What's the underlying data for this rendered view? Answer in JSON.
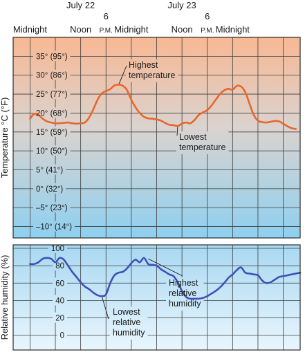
{
  "chart_data": [
    {
      "type": "line",
      "ylabel": "Temperature °C (°F)",
      "ylim": [
        -13,
        40
      ],
      "y_ticks": [
        {
          "value": 35,
          "label": "35° (95°)"
        },
        {
          "value": 30,
          "label": "30° (86°)"
        },
        {
          "value": 25,
          "label": "25° (77°)"
        },
        {
          "value": 20,
          "label": "20° (68°)"
        },
        {
          "value": 15,
          "label": "15° (59°)"
        },
        {
          "value": 10,
          "label": "10° (50°)"
        },
        {
          "value": 5,
          "label": "5° (41°)"
        },
        {
          "value": 0,
          "label": "0° (32°)"
        },
        {
          "value": -5,
          "label": "–5° (23°)"
        },
        {
          "value": -10,
          "label": "–10° (14°)"
        }
      ],
      "x_hours": [
        0,
        1,
        2,
        3,
        4,
        5,
        6,
        7,
        8,
        9,
        10,
        11,
        12,
        13,
        14,
        15,
        16,
        17,
        18,
        19,
        20,
        21,
        22,
        23,
        24,
        25,
        26,
        27,
        28,
        29,
        30,
        31,
        32,
        33,
        34,
        35,
        36,
        37,
        38,
        39,
        40,
        41,
        42,
        43,
        44,
        45,
        46,
        47,
        48,
        49,
        50,
        51,
        52,
        53,
        54,
        55,
        56,
        57,
        58,
        59,
        60,
        61,
        62,
        63
      ],
      "series": [
        {
          "color": "#e8662a",
          "values": [
            18.5,
            19.8,
            19.5,
            18.5,
            17.8,
            17.5,
            17.3,
            17.3,
            17.4,
            17.5,
            17.3,
            17.2,
            17.3,
            17.5,
            18.8,
            21,
            23.5,
            25.2,
            25.8,
            26.3,
            27.3,
            27.5,
            27.2,
            26,
            23.5,
            21.5,
            20,
            19,
            18.6,
            18.5,
            18.3,
            18,
            17.4,
            16.9,
            16.8,
            16.6,
            17.2,
            17.5,
            17.3,
            18.2,
            19.5,
            20.2,
            20.8,
            22,
            23.5,
            25,
            26,
            26.4,
            26.2,
            27.2,
            27,
            25.5,
            22.5,
            19.5,
            18,
            17.6,
            17.5,
            17.7,
            17.9,
            17.8,
            17.2,
            16.5,
            16,
            15.8
          ]
        }
      ],
      "annotations": [
        {
          "text": [
            "Highest",
            "temperature"
          ],
          "hour": 21,
          "value": 27.5
        },
        {
          "text": [
            "Lowest",
            "temperature"
          ],
          "hour": 35,
          "value": 16.6
        }
      ]
    },
    {
      "type": "line",
      "ylabel": "Relative humidity (%)",
      "ylim": [
        -17,
        104
      ],
      "y_ticks": [
        {
          "value": 100,
          "label": "100"
        },
        {
          "value": 80,
          "label": "80"
        },
        {
          "value": 60,
          "label": "60"
        },
        {
          "value": 40,
          "label": "40"
        },
        {
          "value": 20,
          "label": "20"
        },
        {
          "value": 0,
          "label": "0"
        }
      ],
      "x_hours": [
        0,
        1,
        2,
        3,
        4,
        5,
        6,
        7,
        8,
        9,
        10,
        11,
        12,
        13,
        14,
        15,
        16,
        17,
        18,
        19,
        20,
        21,
        22,
        23,
        24,
        25,
        26,
        27,
        28,
        29,
        30,
        31,
        32,
        33,
        34,
        35,
        36,
        37,
        38,
        39,
        40,
        41,
        42,
        43,
        44,
        45,
        46,
        47,
        48,
        49,
        50,
        51,
        52,
        53,
        54,
        55,
        56,
        57,
        58,
        59,
        60,
        61,
        62,
        63,
        64
      ],
      "series": [
        {
          "color": "#3d50b8",
          "values": [
            82,
            82,
            84,
            88,
            89,
            88,
            84,
            89,
            87,
            80,
            73,
            67,
            61,
            56,
            53,
            49,
            46,
            45,
            47,
            60,
            69,
            72,
            73,
            77,
            83,
            87,
            84,
            89,
            82,
            81,
            80,
            76,
            73,
            70,
            68,
            61,
            51,
            44,
            42,
            42,
            42,
            43,
            45,
            48,
            51,
            55,
            60,
            66,
            70,
            75,
            78,
            72,
            71,
            70,
            69,
            63,
            60,
            61,
            64,
            67,
            68,
            69,
            70,
            71,
            72
          ]
        }
      ],
      "annotations": [
        {
          "text": [
            "Lowest",
            "relative",
            "humidity"
          ],
          "hour": 17,
          "value": 45
        },
        {
          "text": [
            "Highest",
            "relative",
            "humidity"
          ],
          "hour": 28,
          "value": 88
        }
      ]
    }
  ],
  "time_axis": {
    "hour_range": [
      -4,
      64
    ],
    "labels": [
      {
        "text": "Midnight",
        "hour": 0,
        "small": false
      },
      {
        "text": "Noon",
        "hour": 12,
        "small": false
      },
      {
        "text": "6",
        "hour": 18,
        "small": false,
        "row": "upper"
      },
      {
        "text": "P.M.",
        "hour": 18,
        "small": true
      },
      {
        "text": "Midnight",
        "hour": 24,
        "small": false
      },
      {
        "text": "Noon",
        "hour": 36,
        "small": false
      },
      {
        "text": "6",
        "hour": 42,
        "small": false,
        "row": "upper"
      },
      {
        "text": "P.M.",
        "hour": 42,
        "small": true
      },
      {
        "text": "Midnight",
        "hour": 48,
        "small": false
      }
    ],
    "dates": [
      {
        "text": "July 22",
        "hour": 12
      },
      {
        "text": "July 23",
        "hour": 36
      }
    ],
    "gridlines_hours": [
      0,
      6,
      12,
      18,
      24,
      30,
      36,
      42,
      48,
      54,
      60
    ]
  },
  "colors": {
    "temp_gradient_top": "#f8b893",
    "temp_gradient_bottom": "#8ed0f0",
    "humidity_gradient_top": "#a8d8f2",
    "humidity_gradient_bottom": "#e9f6fd",
    "temp_line": "#e8662a",
    "humidity_line": "#3d50b8"
  }
}
